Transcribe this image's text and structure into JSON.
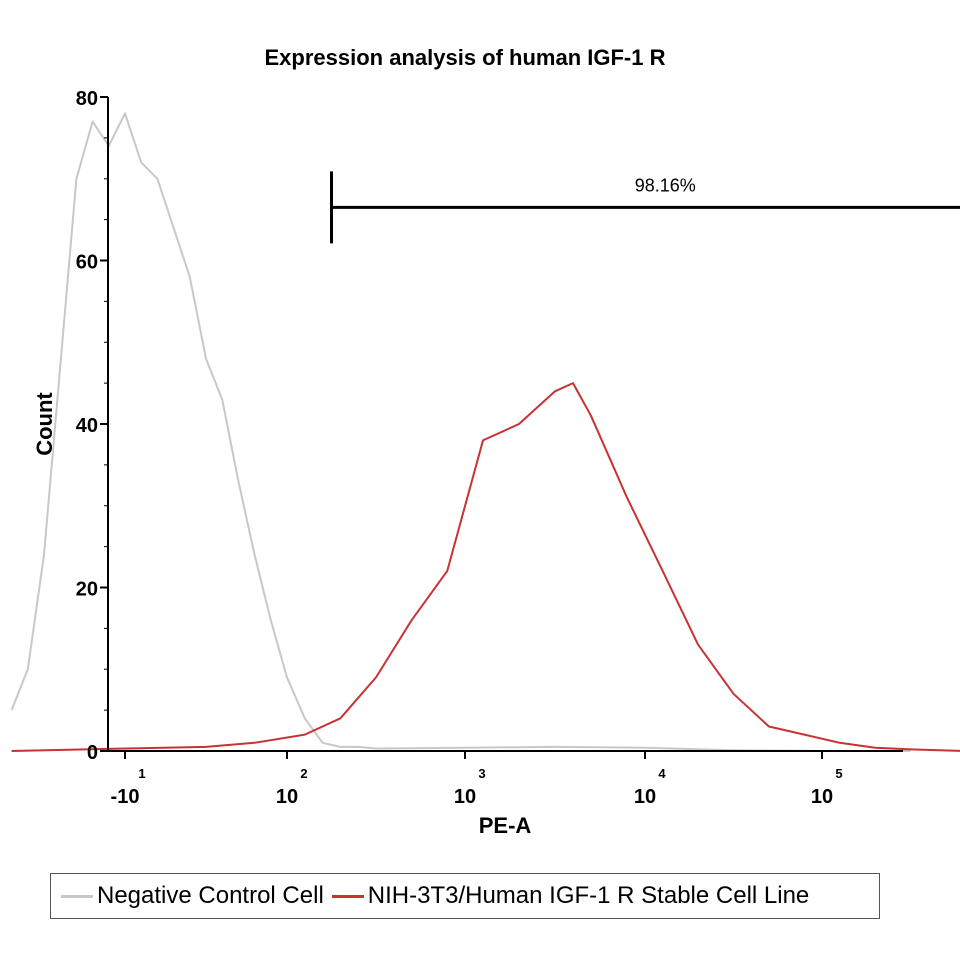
{
  "chart_data": {
    "type": "line",
    "title": "Expression analysis of human IGF-1 R",
    "xlabel": "PE-A",
    "ylabel": "Count",
    "ylim": [
      0,
      80
    ],
    "yticks": [
      0,
      20,
      40,
      60,
      80
    ],
    "xscale": "biexponential",
    "xticks": [
      {
        "base": "-10",
        "exp": "1"
      },
      {
        "base": "10",
        "exp": "2"
      },
      {
        "base": "10",
        "exp": "3"
      },
      {
        "base": "10",
        "exp": "4"
      },
      {
        "base": "10",
        "exp": "5"
      }
    ],
    "gate": {
      "label": "98.16%",
      "from": 1.75,
      "to": 5.5
    },
    "legend_position": "bottom",
    "series": [
      {
        "name": "Negative Control Cell",
        "color": "#c8c8c8",
        "x": [
          -0.2,
          -0.1,
          0.0,
          0.1,
          0.2,
          0.3,
          0.4,
          0.5,
          0.6,
          0.7,
          0.8,
          0.9,
          1.0,
          1.1,
          1.2,
          1.3,
          1.4,
          1.5,
          1.6,
          1.7,
          1.8,
          1.9,
          2.0,
          2.5,
          3.0,
          3.5,
          4.0,
          4.5,
          5.0
        ],
        "values": [
          5,
          10,
          24,
          47,
          70,
          77,
          74,
          78,
          72,
          70,
          64,
          58,
          48,
          43,
          33,
          24,
          16,
          9,
          4,
          1,
          0.5,
          0.5,
          0.3,
          0.4,
          0.5,
          0.4,
          0.1,
          0,
          0
        ]
      },
      {
        "name": "NIH-3T3/Human IGF-1 R Stable Cell Line",
        "color": "#c83232",
        "x": [
          -0.2,
          0.5,
          1.0,
          1.3,
          1.6,
          1.8,
          2.0,
          2.2,
          2.4,
          2.6,
          2.8,
          3.0,
          3.1,
          3.2,
          3.3,
          3.4,
          3.6,
          3.8,
          4.0,
          4.2,
          4.4,
          4.6,
          4.8,
          5.0,
          5.3
        ],
        "values": [
          0,
          0.3,
          0.5,
          1,
          2,
          4,
          9,
          16,
          22,
          38,
          40,
          44,
          45,
          41,
          36,
          31,
          22,
          13,
          7,
          3,
          2,
          1,
          0.4,
          0.2,
          0
        ]
      }
    ]
  }
}
